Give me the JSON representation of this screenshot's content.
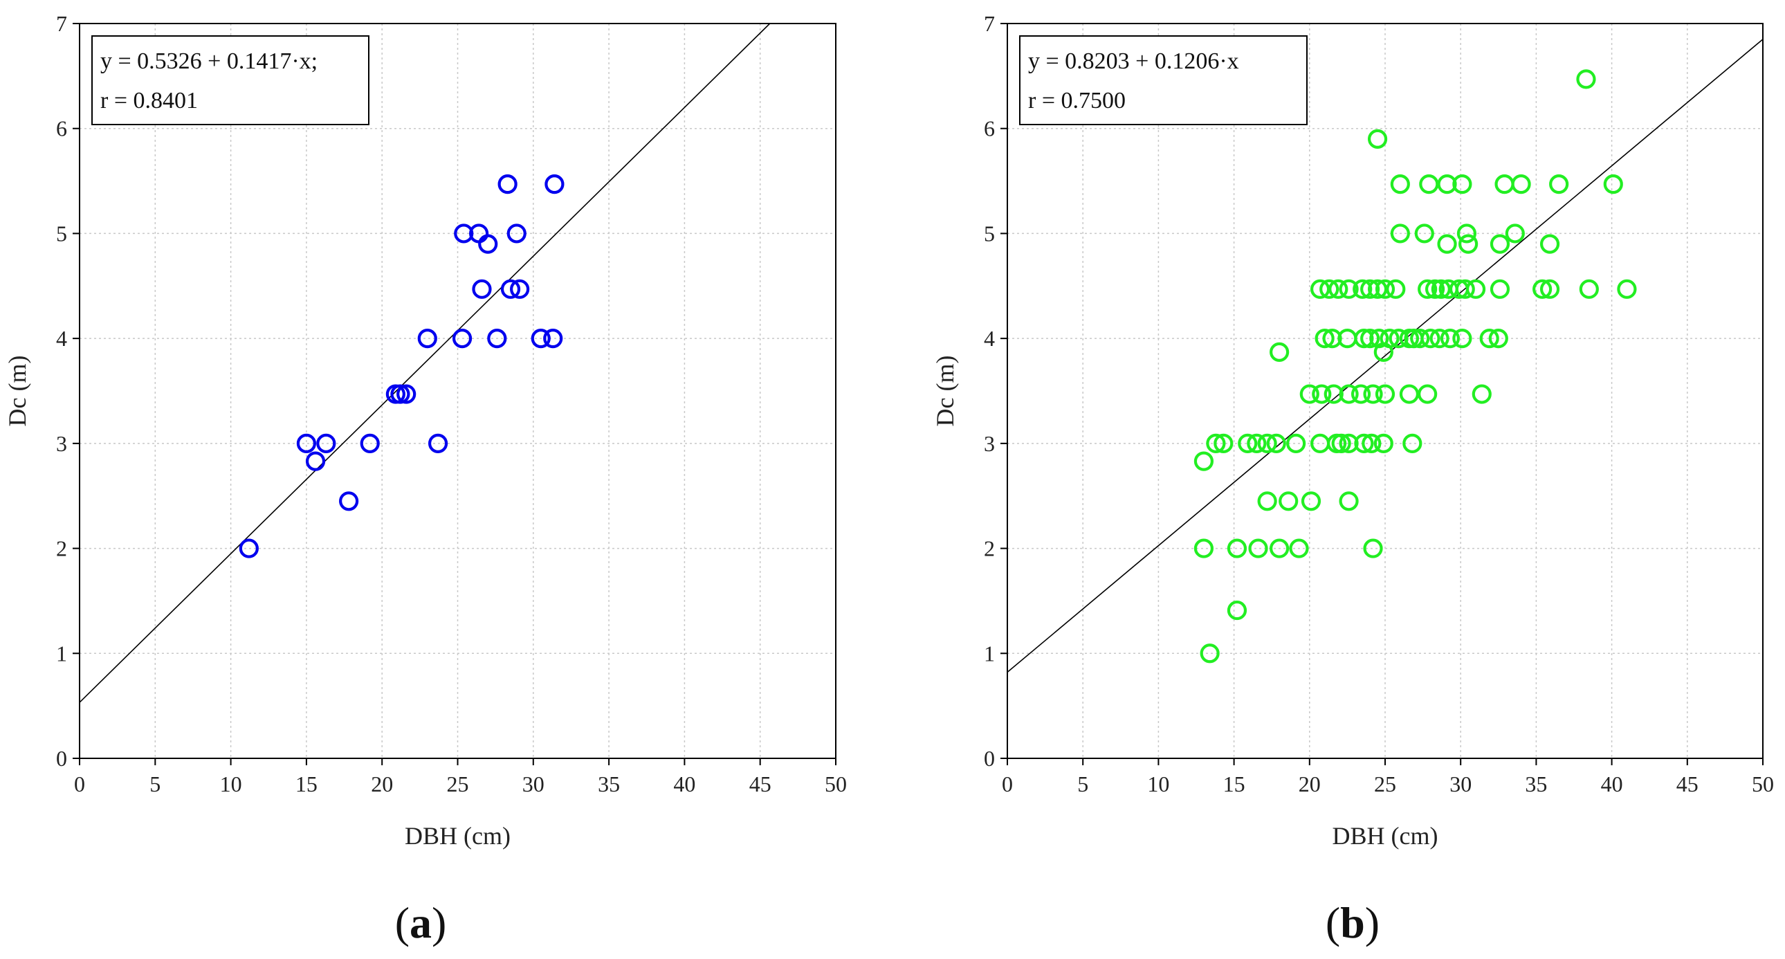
{
  "chart_data": [
    {
      "type": "scatter",
      "panel_label": "a",
      "xlabel": "DBH (cm)",
      "ylabel": "Dc (m)",
      "xlim": [
        0,
        50
      ],
      "ylim": [
        0,
        7
      ],
      "xticks": [
        "0",
        "5",
        "10",
        "15",
        "20",
        "25",
        "30",
        "35",
        "40",
        "45",
        "50"
      ],
      "yticks": [
        "0",
        "1",
        "2",
        "3",
        "4",
        "5",
        "6",
        "7"
      ],
      "grid": true,
      "marker_color": "#0000ee",
      "regression": {
        "intercept": 0.5326,
        "slope": 0.1417
      },
      "equation_lines": [
        "y = 0.5326 + 0.1417·x;",
        "r = 0.8401"
      ],
      "points": [
        [
          11.2,
          2.0
        ],
        [
          15.0,
          3.0
        ],
        [
          15.6,
          2.83
        ],
        [
          16.3,
          3.0
        ],
        [
          17.8,
          2.45
        ],
        [
          19.2,
          3.0
        ],
        [
          20.9,
          3.47
        ],
        [
          21.2,
          3.47
        ],
        [
          21.6,
          3.47
        ],
        [
          23.0,
          4.0
        ],
        [
          23.7,
          3.0
        ],
        [
          25.3,
          4.0
        ],
        [
          25.4,
          5.0
        ],
        [
          26.4,
          5.0
        ],
        [
          26.6,
          4.47
        ],
        [
          27.0,
          4.9
        ],
        [
          27.6,
          4.0
        ],
        [
          28.3,
          5.47
        ],
        [
          28.5,
          4.47
        ],
        [
          28.9,
          5.0
        ],
        [
          29.1,
          4.47
        ],
        [
          30.5,
          4.0
        ],
        [
          31.3,
          4.0
        ],
        [
          31.4,
          5.47
        ]
      ]
    },
    {
      "type": "scatter",
      "panel_label": "b",
      "xlabel": "DBH (cm)",
      "ylabel": "Dc (m)",
      "xlim": [
        0,
        50
      ],
      "ylim": [
        0,
        7
      ],
      "xticks": [
        "0",
        "5",
        "10",
        "15",
        "20",
        "25",
        "30",
        "35",
        "40",
        "45",
        "50"
      ],
      "yticks": [
        "0",
        "1",
        "2",
        "3",
        "4",
        "5",
        "6",
        "7"
      ],
      "grid": true,
      "marker_color": "#22ee22",
      "regression": {
        "intercept": 0.8203,
        "slope": 0.1206
      },
      "equation_lines": [
        "y = 0.8203 + 0.1206·x",
        "r = 0.7500"
      ],
      "points": [
        [
          13.4,
          1.0
        ],
        [
          15.2,
          1.41
        ],
        [
          13.0,
          2.0
        ],
        [
          15.2,
          2.0
        ],
        [
          16.6,
          2.0
        ],
        [
          18.0,
          2.0
        ],
        [
          19.3,
          2.0
        ],
        [
          24.2,
          2.0
        ],
        [
          17.2,
          2.45
        ],
        [
          18.6,
          2.45
        ],
        [
          20.1,
          2.45
        ],
        [
          22.6,
          2.45
        ],
        [
          13.0,
          2.83
        ],
        [
          13.8,
          3.0
        ],
        [
          14.3,
          3.0
        ],
        [
          15.9,
          3.0
        ],
        [
          16.5,
          3.0
        ],
        [
          17.2,
          3.0
        ],
        [
          17.8,
          3.0
        ],
        [
          19.1,
          3.0
        ],
        [
          20.7,
          3.0
        ],
        [
          21.8,
          3.0
        ],
        [
          22.1,
          3.0
        ],
        [
          22.6,
          3.0
        ],
        [
          23.6,
          3.0
        ],
        [
          24.1,
          3.0
        ],
        [
          24.9,
          3.0
        ],
        [
          26.8,
          3.0
        ],
        [
          20.0,
          3.47
        ],
        [
          20.8,
          3.47
        ],
        [
          21.6,
          3.47
        ],
        [
          22.6,
          3.47
        ],
        [
          23.4,
          3.47
        ],
        [
          24.2,
          3.47
        ],
        [
          25.0,
          3.47
        ],
        [
          26.6,
          3.47
        ],
        [
          27.8,
          3.47
        ],
        [
          31.4,
          3.47
        ],
        [
          18.0,
          3.87
        ],
        [
          24.9,
          3.87
        ],
        [
          21.0,
          4.0
        ],
        [
          21.5,
          4.0
        ],
        [
          22.5,
          4.0
        ],
        [
          23.6,
          4.0
        ],
        [
          24.0,
          4.0
        ],
        [
          24.6,
          4.0
        ],
        [
          25.3,
          4.0
        ],
        [
          25.9,
          4.0
        ],
        [
          26.6,
          4.0
        ],
        [
          26.9,
          4.0
        ],
        [
          27.3,
          4.0
        ],
        [
          28.0,
          4.0
        ],
        [
          28.6,
          4.0
        ],
        [
          29.3,
          4.0
        ],
        [
          30.1,
          4.0
        ],
        [
          31.9,
          4.0
        ],
        [
          32.5,
          4.0
        ],
        [
          20.7,
          4.47
        ],
        [
          21.3,
          4.47
        ],
        [
          21.9,
          4.47
        ],
        [
          22.6,
          4.47
        ],
        [
          23.5,
          4.47
        ],
        [
          24.0,
          4.47
        ],
        [
          24.5,
          4.47
        ],
        [
          25.0,
          4.47
        ],
        [
          25.7,
          4.47
        ],
        [
          27.8,
          4.47
        ],
        [
          28.3,
          4.47
        ],
        [
          28.7,
          4.47
        ],
        [
          29.2,
          4.47
        ],
        [
          29.9,
          4.47
        ],
        [
          30.3,
          4.47
        ],
        [
          31.0,
          4.47
        ],
        [
          32.6,
          4.47
        ],
        [
          35.4,
          4.47
        ],
        [
          35.9,
          4.47
        ],
        [
          38.5,
          4.47
        ],
        [
          41.0,
          4.47
        ],
        [
          29.1,
          4.9
        ],
        [
          30.5,
          4.9
        ],
        [
          32.6,
          4.9
        ],
        [
          35.9,
          4.9
        ],
        [
          26.0,
          5.0
        ],
        [
          27.6,
          5.0
        ],
        [
          30.4,
          5.0
        ],
        [
          33.6,
          5.0
        ],
        [
          26.0,
          5.47
        ],
        [
          27.9,
          5.47
        ],
        [
          29.1,
          5.47
        ],
        [
          30.1,
          5.47
        ],
        [
          32.9,
          5.47
        ],
        [
          34.0,
          5.47
        ],
        [
          36.5,
          5.47
        ],
        [
          40.1,
          5.47
        ],
        [
          24.5,
          5.9
        ],
        [
          38.3,
          6.47
        ]
      ]
    }
  ]
}
